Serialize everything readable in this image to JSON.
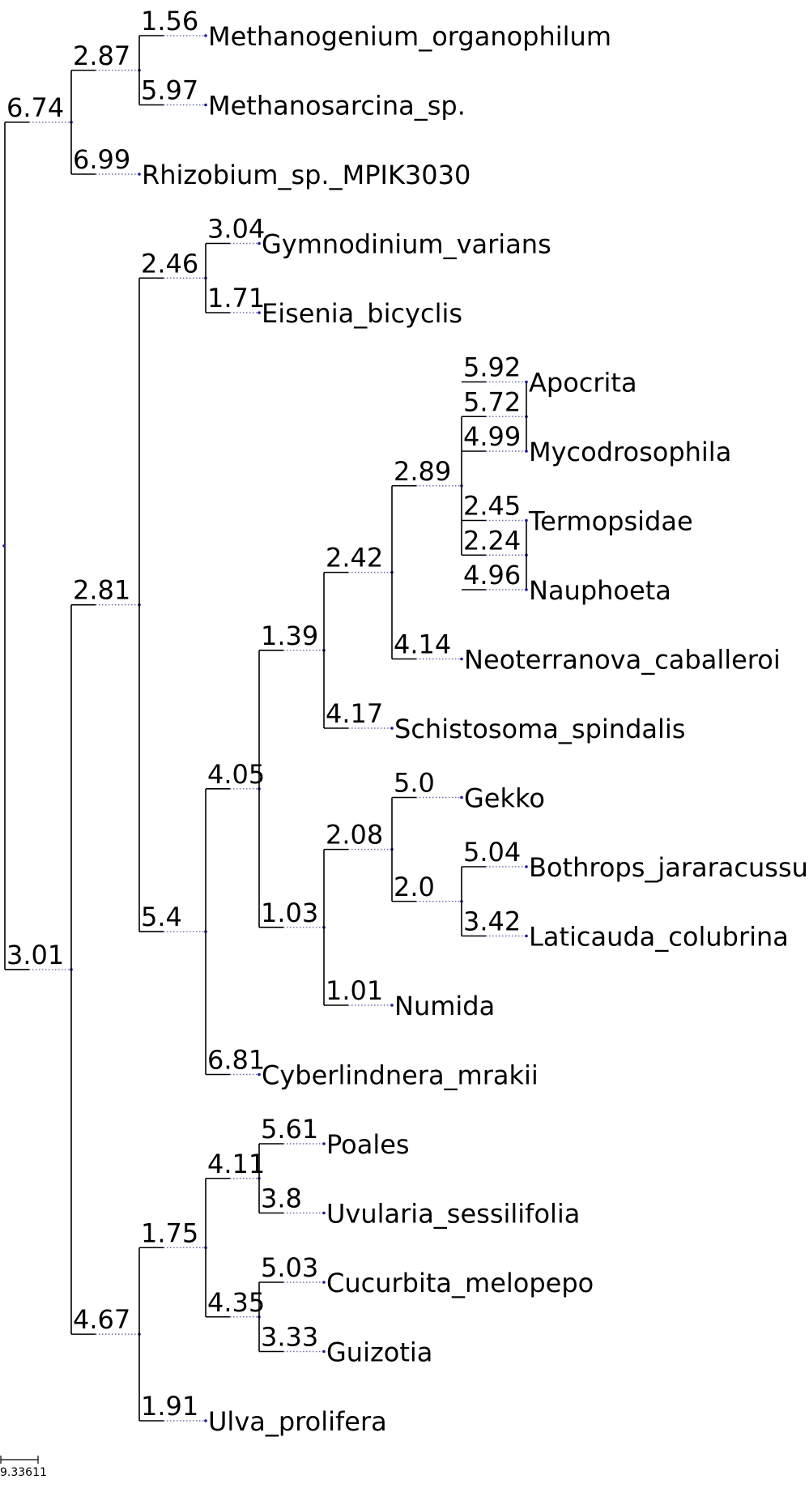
{
  "tree": {
    "leaves": [
      {
        "name": "Methanogenium_organophilum",
        "length": "1.56"
      },
      {
        "name": "Methanosarcina_sp.",
        "length": "5.97"
      },
      {
        "name": "Rhizobium_sp._MPIK3030",
        "length": "6.99"
      },
      {
        "name": "Gymnodinium_varians",
        "length": "3.04"
      },
      {
        "name": "Eisenia_bicyclis",
        "length": "1.71"
      },
      {
        "name": "Apocrita",
        "length": "5.92"
      },
      {
        "name": "Mycodrosophila",
        "length": "4.99"
      },
      {
        "name": "Termopsidae",
        "length": "2.45"
      },
      {
        "name": "Nauphoeta",
        "length": "4.96"
      },
      {
        "name": "Neoterranova_caballeroi",
        "length": "4.14"
      },
      {
        "name": "Schistosoma_spindalis",
        "length": "4.17"
      },
      {
        "name": "Gekko",
        "length": "5.0"
      },
      {
        "name": "Bothrops_jararacussu",
        "length": "5.04"
      },
      {
        "name": "Laticauda_colubrina",
        "length": "3.42"
      },
      {
        "name": "Numida",
        "length": "1.01"
      },
      {
        "name": "Cyberlindnera_mrakii",
        "length": "6.81"
      },
      {
        "name": "Poales",
        "length": "5.61"
      },
      {
        "name": "Uvularia_sessilifolia",
        "length": "3.8"
      },
      {
        "name": "Cucurbita_melopepo",
        "length": "5.03"
      },
      {
        "name": "Guizotia",
        "length": "3.33"
      },
      {
        "name": "Ulva_prolifera",
        "length": "1.91"
      }
    ],
    "internal": [
      {
        "id": "A",
        "length": "6.74"
      },
      {
        "id": "B",
        "length": "2.87"
      },
      {
        "id": "C",
        "length": "3.01"
      },
      {
        "id": "D",
        "length": "2.81"
      },
      {
        "id": "E",
        "length": "4.67"
      },
      {
        "id": "F",
        "length": "2.46"
      },
      {
        "id": "G",
        "length": "5.4"
      },
      {
        "id": "H",
        "length": "4.05"
      },
      {
        "id": "I",
        "length": "1.39"
      },
      {
        "id": "J",
        "length": "2.42"
      },
      {
        "id": "K",
        "length": "2.89"
      },
      {
        "id": "L",
        "length": "5.72"
      },
      {
        "id": "M",
        "length": "2.24"
      },
      {
        "id": "N",
        "length": "1.03"
      },
      {
        "id": "O",
        "length": "2.08"
      },
      {
        "id": "P",
        "length": "2.0"
      },
      {
        "id": "Q",
        "length": "1.75"
      },
      {
        "id": "R",
        "length": "4.11"
      },
      {
        "id": "S",
        "length": "4.35"
      }
    ]
  },
  "scale_bar": {
    "label": "9.33611"
  },
  "colors": {
    "branch": "#000000",
    "guide": "#6d6dab",
    "node": "#1a1aa0"
  }
}
